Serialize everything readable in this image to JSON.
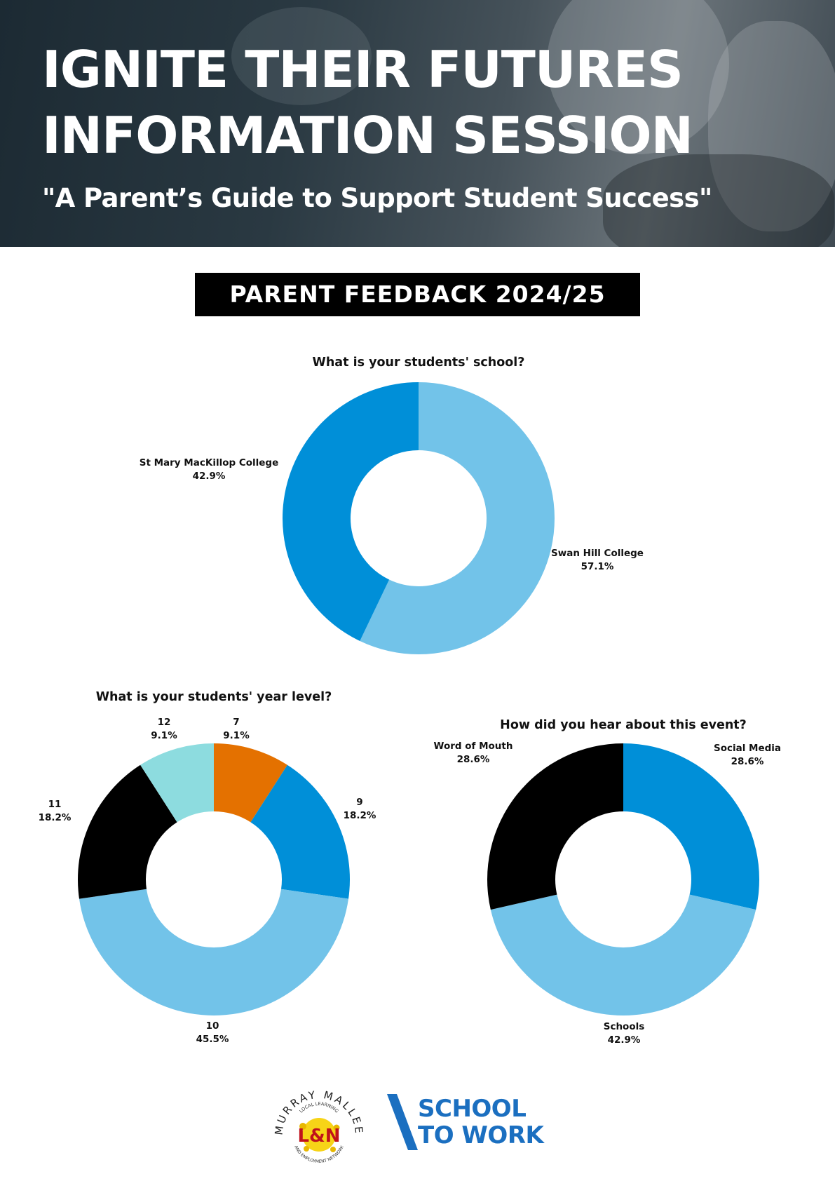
{
  "header": {
    "title_line1": "IGNITE THEIR FUTURES",
    "title_line2": "INFORMATION SESSION",
    "subtitle": "\"A Parent’s Guide to Support Student Success\""
  },
  "section_title": "PARENT FEEDBACK 2024/25",
  "colors": {
    "light_blue": "#72c3e9",
    "blue": "#008fd8",
    "black": "#000000",
    "orange": "#e47100",
    "teal": "#8ddcdf",
    "brand_blue": "#1b6fc0"
  },
  "chart_data": [
    {
      "type": "pie",
      "donut": true,
      "title": "What is your students' school?",
      "slices": [
        {
          "label": "Swan Hill College",
          "value": 57.1,
          "value_label": "57.1%",
          "color": "#72c3e9"
        },
        {
          "label": "St Mary MacKillop College",
          "value": 42.9,
          "value_label": "42.9%",
          "color": "#008fd8"
        }
      ]
    },
    {
      "type": "pie",
      "donut": true,
      "title": "What is your students' year level?",
      "slices": [
        {
          "label": "7",
          "value": 9.1,
          "value_label": "9.1%",
          "color": "#e47100"
        },
        {
          "label": "9",
          "value": 18.2,
          "value_label": "18.2%",
          "color": "#008fd8"
        },
        {
          "label": "10",
          "value": 45.5,
          "value_label": "45.5%",
          "color": "#72c3e9"
        },
        {
          "label": "11",
          "value": 18.2,
          "value_label": "18.2%",
          "color": "#000000"
        },
        {
          "label": "12",
          "value": 9.1,
          "value_label": "9.1%",
          "color": "#8ddcdf"
        }
      ]
    },
    {
      "type": "pie",
      "donut": true,
      "title": "How did you hear about this event?",
      "slices": [
        {
          "label": "Social Media",
          "value": 28.6,
          "value_label": "28.6%",
          "color": "#008fd8"
        },
        {
          "label": "Schools",
          "value": 42.9,
          "value_label": "42.9%",
          "color": "#72c3e9"
        },
        {
          "label": "Word of Mouth",
          "value": 28.6,
          "value_label": "28.6%",
          "color": "#000000"
        }
      ]
    }
  ],
  "logos": {
    "murray_mallee": {
      "arc_text": "MURRAY MALLEE",
      "inner_top": "LOCAL LEARNING",
      "inner_bottom": "AND EMPLOYMENT NETWORK",
      "mark": "LLEN"
    },
    "school_to_work": {
      "line1": "SCHOOL",
      "line2": "TO WORK"
    }
  }
}
